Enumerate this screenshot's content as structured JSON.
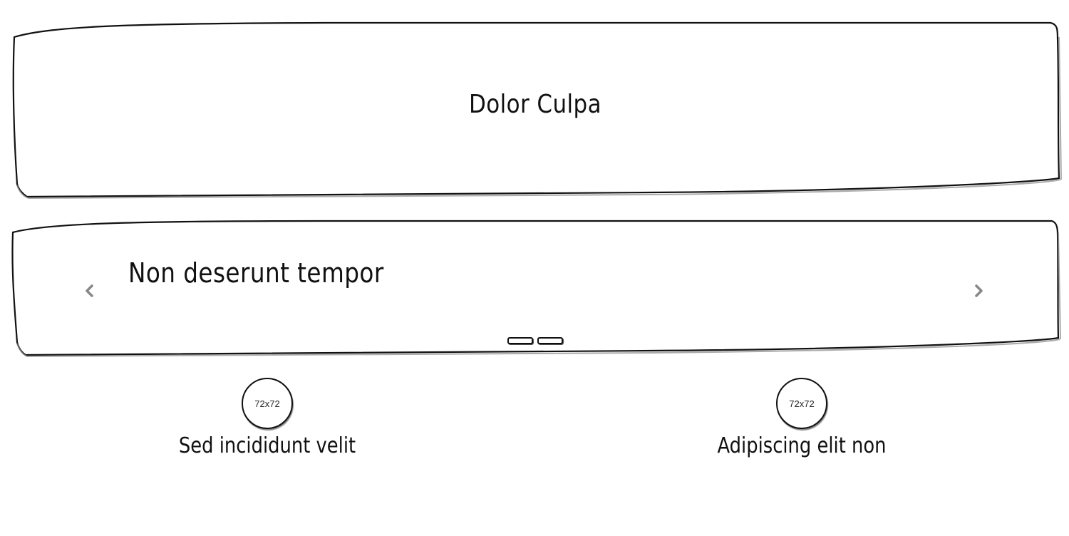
{
  "hero": {
    "title": "Dolor Culpa"
  },
  "carousel": {
    "caption": "Non deserunt tempor",
    "prev_icon": "chevron-left-icon",
    "next_icon": "chevron-right-icon",
    "indicator_count": 2,
    "arrow_color": "#888888"
  },
  "features": [
    {
      "image_label": "72x72",
      "label": "Sed incididunt velit"
    },
    {
      "image_label": "72x72",
      "label": "Adipiscing elit non"
    }
  ]
}
